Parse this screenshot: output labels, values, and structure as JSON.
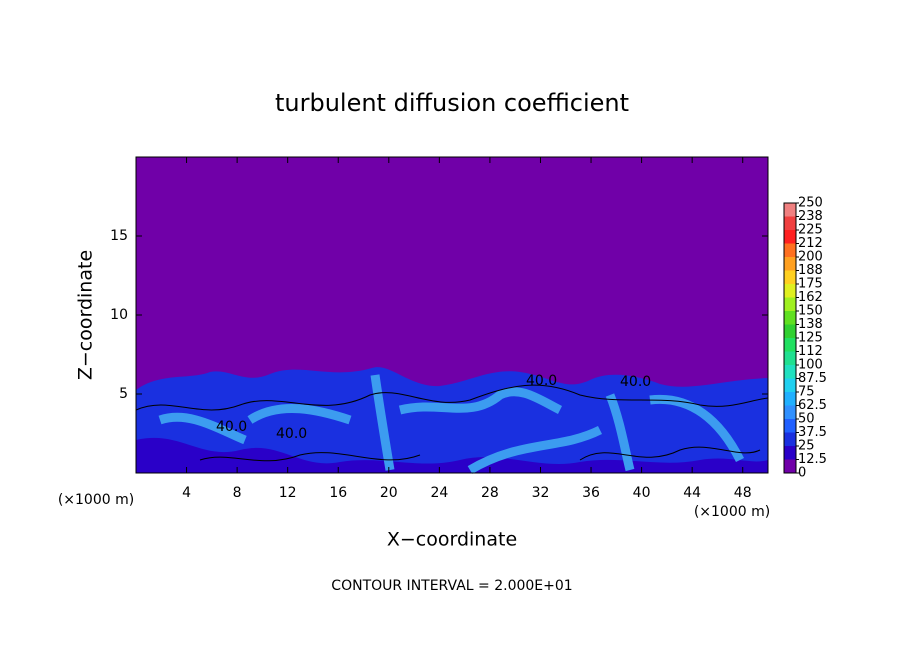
{
  "chart_data": {
    "type": "contour",
    "title": "turbulent diffusion coefficient",
    "xlabel": "X−coordinate",
    "ylabel": "Z−coordinate",
    "x_unit": "(×1000 m)",
    "y_unit": "(×1000 m)",
    "footer": "CONTOUR INTERVAL = 2.000E+01",
    "xlim": [
      0,
      50
    ],
    "xticks": [
      4,
      8,
      12,
      16,
      20,
      24,
      28,
      32,
      36,
      40,
      44,
      48
    ],
    "ylim": [
      0,
      20
    ],
    "yticks": [
      5,
      10,
      15
    ],
    "contour_labels": [
      "40.0",
      "40.0",
      "40.0",
      "40.0"
    ],
    "levels": [
      0,
      12.5,
      25,
      37.5,
      50,
      62.5,
      75,
      87.5,
      100,
      {
        "value": 112.5,
        "label": "112"
      },
      125,
      {
        "value": 137.5,
        "label": "138"
      },
      150,
      {
        "value": 162.5,
        "label": "162"
      },
      175,
      {
        "value": 187.5,
        "label": "188"
      },
      200,
      {
        "value": 212.5,
        "label": "212"
      },
      225,
      {
        "value": 237.5,
        "label": "238"
      },
      250
    ],
    "level_colors": [
      "#7000a8",
      "#2a00c8",
      "#1a30e0",
      "#2060ff",
      "#3090ff",
      "#20b0ff",
      "#20d0f0",
      "#20e0c0",
      "#20e090",
      "#20e060",
      "#30d030",
      "#60e020",
      "#a0f020",
      "#e0f020",
      "#ffd020",
      "#ffa020",
      "#ff7020",
      "#ff2020",
      "#f04040",
      "#f08080"
    ]
  }
}
